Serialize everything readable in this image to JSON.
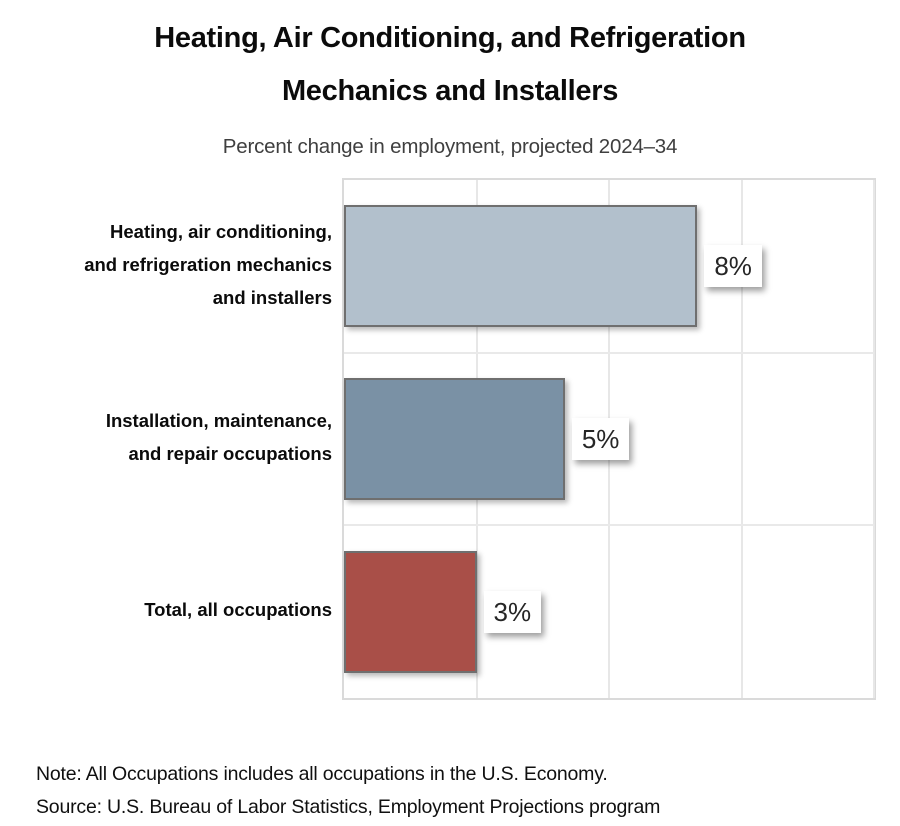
{
  "title": {
    "line1": "Heating, Air Conditioning, and Refrigeration",
    "line2": "Mechanics and Installers"
  },
  "subtitle": "Percent change in employment, projected 2024–34",
  "chart_data": {
    "type": "bar",
    "orientation": "horizontal",
    "title": "Heating, Air Conditioning, and Refrigeration Mechanics and Installers",
    "subtitle": "Percent change in employment, projected 2024–34",
    "categories": [
      "Heating, air conditioning, and refrigeration mechanics and installers",
      "Installation, maintenance, and repair occupations",
      "Total, all occupations"
    ],
    "category_label_lines": [
      [
        "Heating, air conditioning,",
        "and refrigeration mechanics",
        "and installers"
      ],
      [
        "Installation, maintenance,",
        "and repair occupations"
      ],
      [
        "Total, all occupations"
      ]
    ],
    "values": [
      8,
      5,
      3
    ],
    "value_labels": [
      "8%",
      "5%",
      "3%"
    ],
    "bar_colors": [
      "#b2c0cc",
      "#7a91a5",
      "#a94f48"
    ],
    "bar_border_color": "#6f6f6f",
    "xlabel": "",
    "ylabel": "",
    "xlim": [
      0,
      12
    ],
    "gridline_values": [
      3,
      6,
      9,
      12
    ],
    "grid": true,
    "legend": false
  },
  "notes": {
    "note": "Note: All Occupations includes all occupations in the U.S. Economy.",
    "source": "Source: U.S. Bureau of Labor Statistics, Employment Projections program"
  }
}
